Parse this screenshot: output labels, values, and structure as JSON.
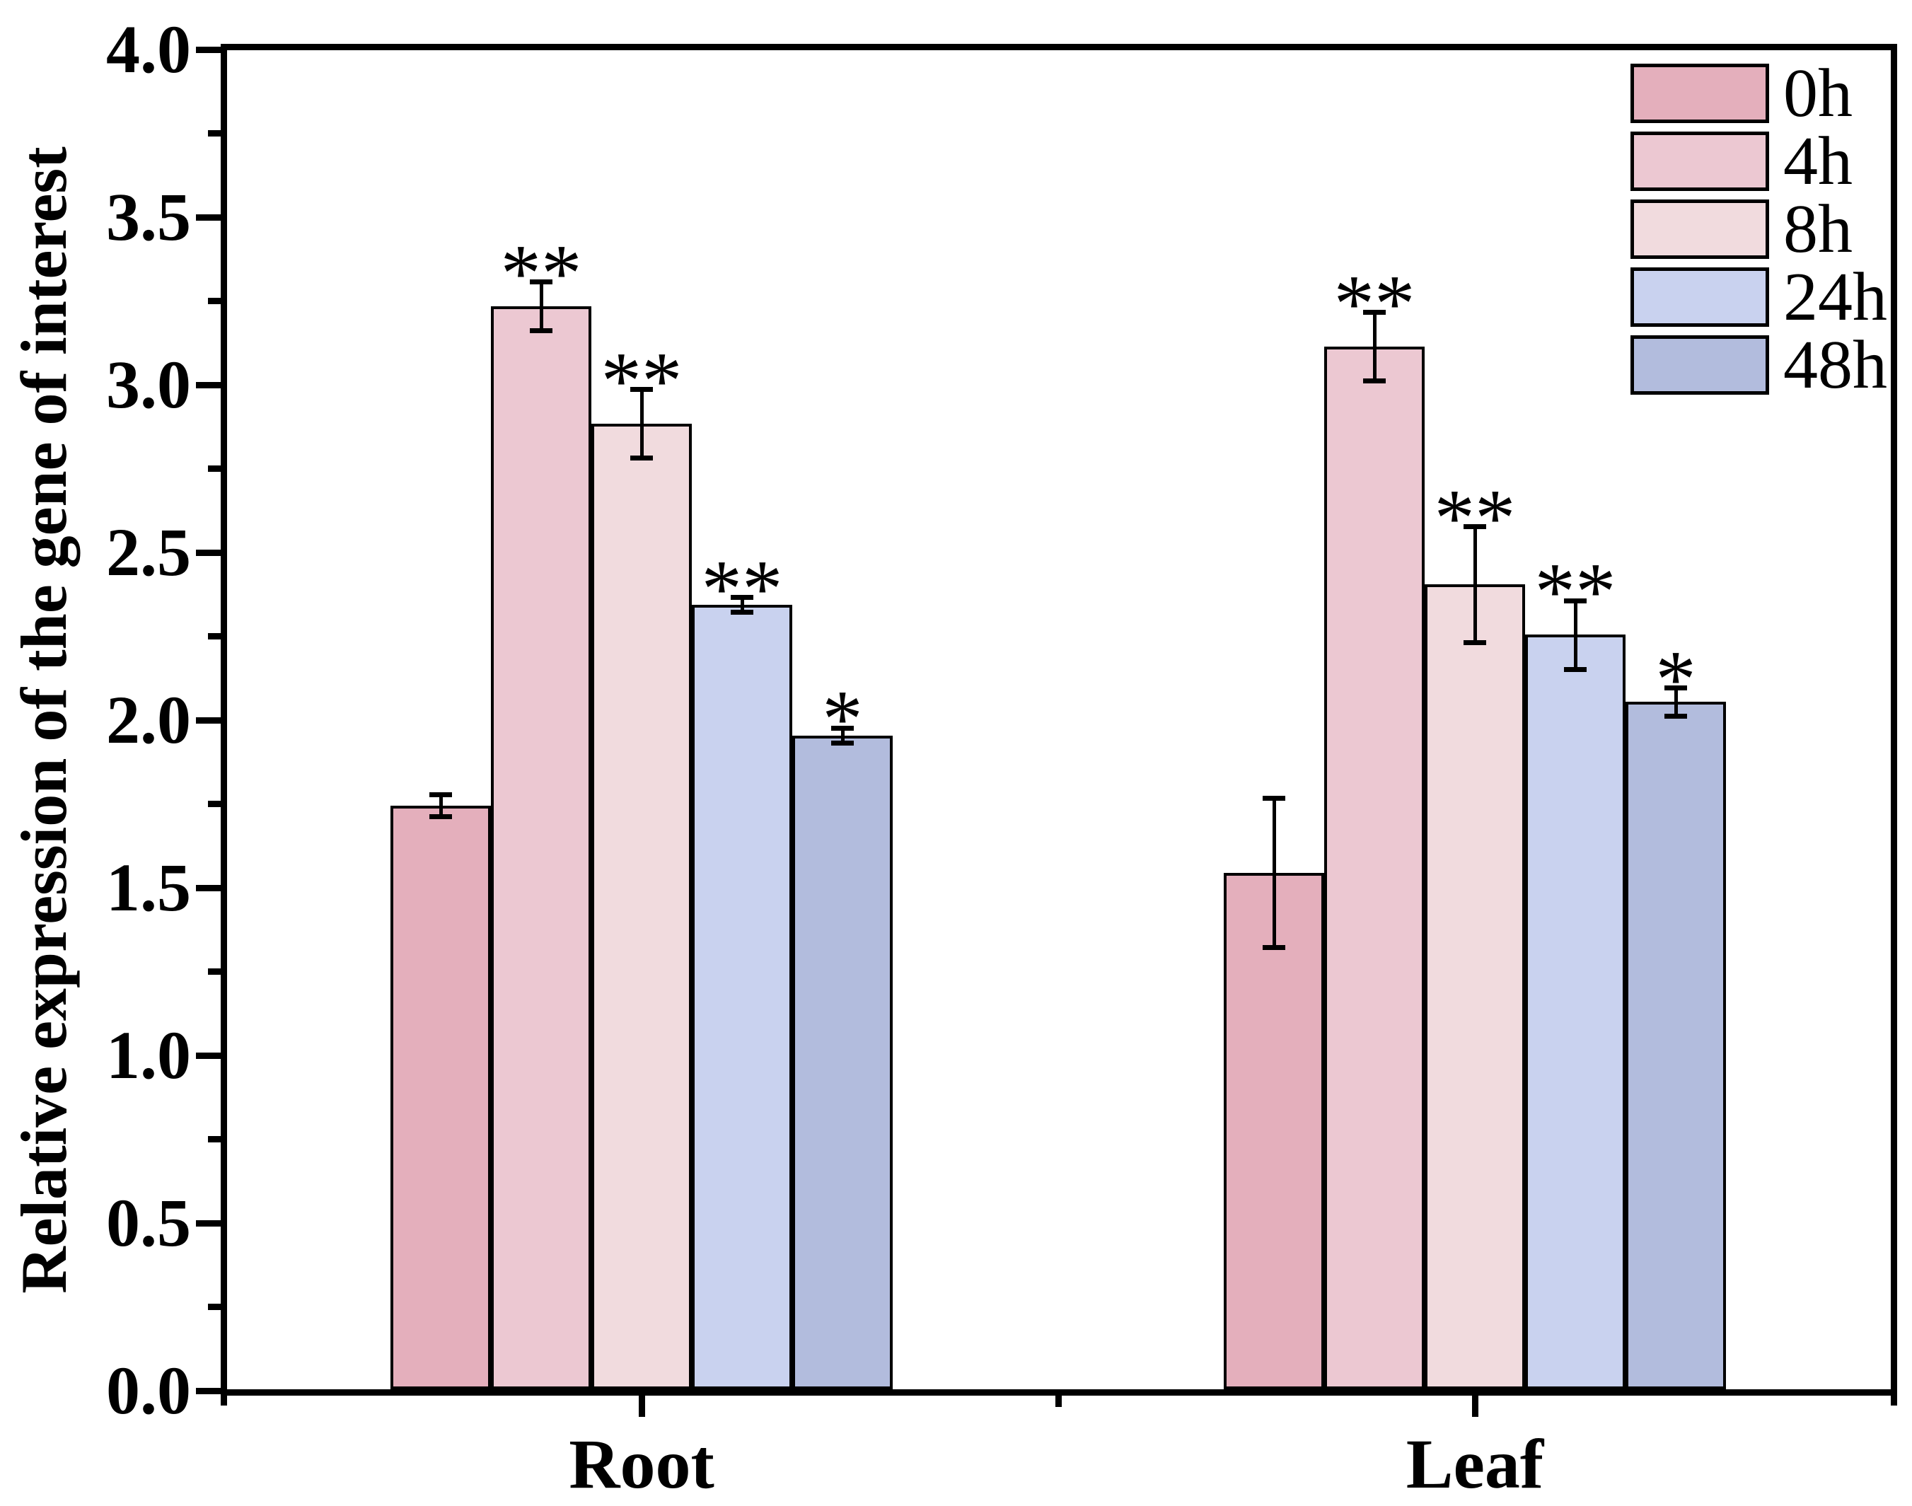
{
  "chart_data": {
    "type": "bar",
    "title": "",
    "ylabel": "Relative expression of the gene of interest",
    "xlabel": "",
    "ylim": [
      0.0,
      4.0
    ],
    "ytick_major_step": 0.5,
    "ytick_minor_step": 0.25,
    "ytick_labels": [
      "0.0",
      "0.5",
      "1.0",
      "1.5",
      "2.0",
      "2.5",
      "3.0",
      "3.5",
      "4.0"
    ],
    "grid": false,
    "legend_position": "top-right-inside",
    "categories": [
      "Root",
      "Leaf"
    ],
    "series": [
      {
        "name": "0h",
        "color": "#e4afbc",
        "values": [
          1.74,
          1.54
        ],
        "errors": [
          0.04,
          0.23
        ],
        "significance": [
          "",
          ""
        ]
      },
      {
        "name": "4h",
        "color": "#ecc8d2",
        "values": [
          3.23,
          3.11
        ],
        "errors": [
          0.08,
          0.11
        ],
        "significance": [
          "**",
          "**"
        ]
      },
      {
        "name": "8h",
        "color": "#f1dbde",
        "values": [
          2.88,
          2.4
        ],
        "errors": [
          0.11,
          0.18
        ],
        "significance": [
          "**",
          "**"
        ]
      },
      {
        "name": "24h",
        "color": "#c9d2ef",
        "values": [
          2.34,
          2.25
        ],
        "errors": [
          0.03,
          0.11
        ],
        "significance": [
          "**",
          "**"
        ]
      },
      {
        "name": "48h",
        "color": "#b2bcdd",
        "values": [
          1.95,
          2.05
        ],
        "errors": [
          0.03,
          0.05
        ],
        "significance": [
          "*",
          "*"
        ]
      }
    ],
    "axis_color": "#000000",
    "background_color": "#ffffff"
  }
}
